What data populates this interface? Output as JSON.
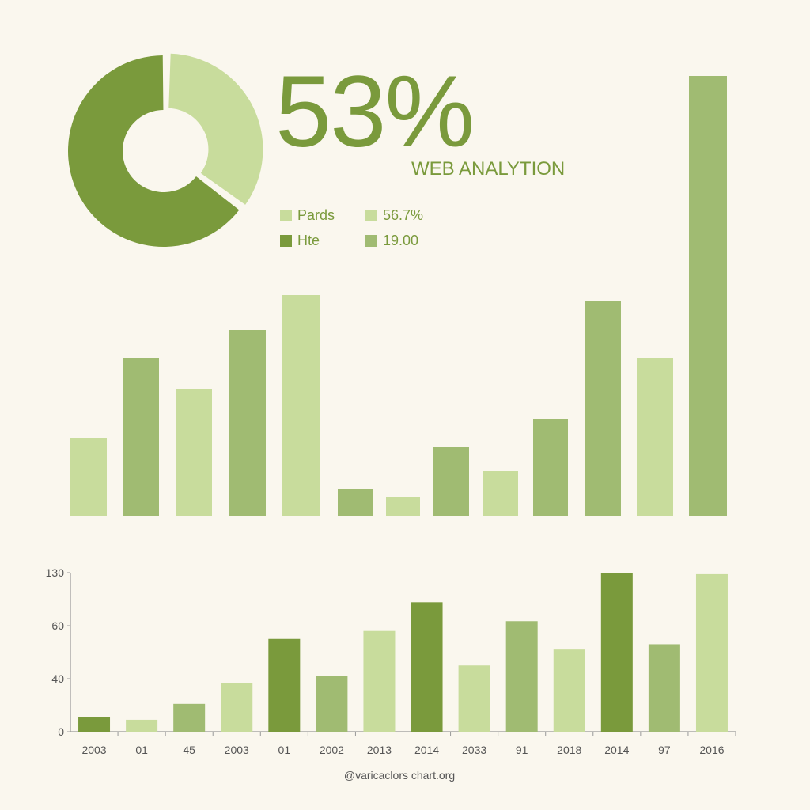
{
  "colors": {
    "dark": "#7a9a3c",
    "mid": "#a0bb72",
    "light": "#c8dc9c",
    "background": "#faf7ee",
    "axis": "#999999",
    "text": "#555555"
  },
  "headline": {
    "value": "53%",
    "subtitle": "WEB ANALYTION"
  },
  "legend": [
    {
      "label": "Pards",
      "color": "light"
    },
    {
      "label": "56.7%",
      "color": "light"
    },
    {
      "label": "Hte",
      "color": "dark"
    },
    {
      "label": "19.00",
      "color": "mid"
    }
  ],
  "footer": "@varicaclors chart.org",
  "chart_data": [
    {
      "type": "pie",
      "variant": "donut",
      "slices": [
        {
          "color": "light",
          "percent": 35
        },
        {
          "color": "dark",
          "percent": 65
        }
      ]
    },
    {
      "type": "bar",
      "axes": "none",
      "values": [
        98,
        200,
        160,
        235,
        279,
        34,
        24,
        87,
        56,
        122,
        271,
        200,
        556
      ],
      "colors": [
        "light",
        "mid",
        "light",
        "mid",
        "light",
        "mid",
        "light",
        "mid",
        "light",
        "mid",
        "mid",
        "light",
        "mid"
      ]
    },
    {
      "type": "bar",
      "categories": [
        "2003",
        "01",
        "45",
        "2003",
        "01",
        "2002",
        "2013",
        "2014",
        "2033",
        "91",
        "2018",
        "2014",
        "97",
        "2016"
      ],
      "values": [
        11,
        9,
        21,
        37,
        55,
        41,
        58,
        91,
        45,
        66,
        51,
        130,
        53,
        128
      ],
      "colors": [
        "dark",
        "light",
        "mid",
        "light",
        "dark",
        "mid",
        "light",
        "dark",
        "light",
        "mid",
        "light",
        "dark",
        "mid",
        "light"
      ],
      "yticks": [
        0,
        40,
        60,
        130
      ],
      "ylim": [
        0,
        130
      ],
      "grid": false
    }
  ]
}
